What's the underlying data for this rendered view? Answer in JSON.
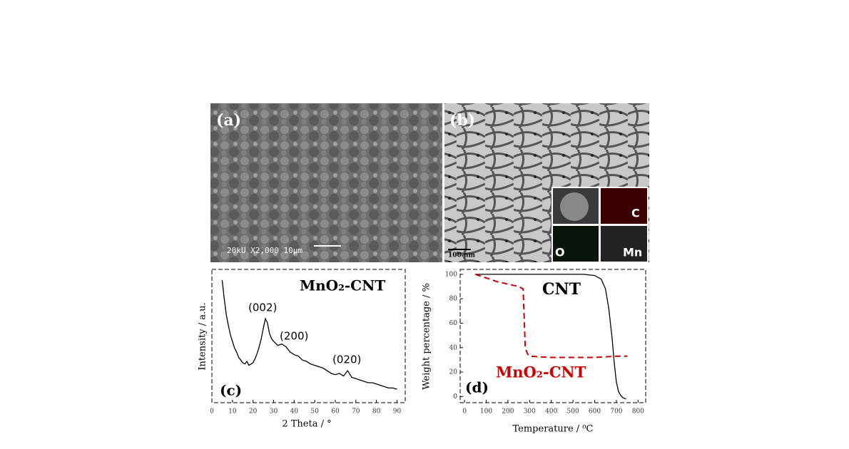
{
  "panels": [
    {
      "label": "(a)",
      "scale_text": "20kU   X2,000   10µm"
    },
    {
      "label": "(b)",
      "scale_text": "100 nm",
      "inset_labels": [
        "C",
        "O",
        "Mn"
      ]
    }
  ],
  "chart_data": [
    {
      "type": "line",
      "label": "(c)",
      "xlabel": "2 Theta / °",
      "ylabel": "Intensity / a.u.",
      "xlim": [
        0,
        94
      ],
      "ylim": [
        0,
        100
      ],
      "xticks": [
        0,
        10,
        20,
        30,
        40,
        50,
        60,
        70,
        80,
        90
      ],
      "annotations": [
        "MnO₂-CNT",
        "(002)",
        "(200)",
        "(020)"
      ],
      "series": [
        {
          "name": "MnO₂-CNT",
          "color": "#000000",
          "x": [
            5,
            6,
            7,
            8,
            9,
            10,
            11,
            12,
            13,
            14,
            15,
            16,
            17,
            18,
            19,
            20,
            21,
            22,
            23,
            24,
            25,
            26,
            27,
            28,
            29,
            30,
            32,
            34,
            36,
            38,
            40,
            42,
            44,
            46,
            48,
            50,
            52,
            54,
            56,
            58,
            60,
            62,
            64,
            66,
            68,
            70,
            72,
            74,
            76,
            78,
            80,
            82,
            84,
            86,
            88,
            90
          ],
          "values": [
            92,
            78,
            66,
            58,
            51,
            46,
            41,
            38,
            34,
            32,
            30,
            29,
            31,
            28,
            29,
            30,
            33,
            37,
            42,
            48,
            56,
            63,
            60,
            52,
            48,
            46,
            43,
            44,
            42,
            38,
            36,
            35,
            32,
            31,
            29,
            28,
            27,
            26,
            24,
            22,
            21,
            22,
            20,
            24,
            19,
            18,
            17,
            16,
            15,
            15,
            14,
            13,
            12,
            11,
            11,
            10
          ]
        }
      ]
    },
    {
      "type": "line",
      "label": "(d)",
      "xlabel": "Temperature / ⁰C",
      "ylabel": "Weight percentage / %",
      "xlim": [
        -20,
        835
      ],
      "ylim": [
        -5,
        104
      ],
      "xticks": [
        0,
        100,
        200,
        300,
        400,
        500,
        600,
        700,
        800
      ],
      "yticks": [
        0,
        20,
        40,
        60,
        80,
        100
      ],
      "annotations": [
        "CNT",
        "MnO₂-CNT"
      ],
      "series": [
        {
          "name": "CNT",
          "color": "#000000",
          "dash": false,
          "x": [
            50,
            200,
            400,
            550,
            600,
            630,
            650,
            665,
            680,
            690,
            700,
            710,
            720,
            730,
            745
          ],
          "values": [
            100,
            100,
            100,
            100,
            99,
            96,
            88,
            72,
            48,
            28,
            12,
            4,
            1,
            -1,
            -2
          ]
        },
        {
          "name": "MnO₂-CNT",
          "color": "#cc0000",
          "dash": true,
          "x": [
            50,
            100,
            150,
            200,
            250,
            270,
            275,
            280,
            290,
            300,
            350,
            400,
            500,
            600,
            700,
            750
          ],
          "values": [
            100,
            97,
            94,
            92,
            90,
            88,
            65,
            40,
            35,
            33,
            32.5,
            32,
            32,
            32,
            33,
            33
          ]
        }
      ]
    }
  ]
}
